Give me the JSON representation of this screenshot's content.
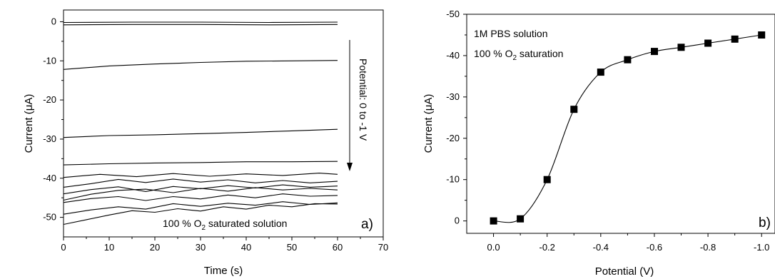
{
  "chart_data": [
    {
      "type": "line",
      "panel_label": "a)",
      "xlabel": "Time (s)",
      "ylabel_pre": "Current (",
      "ylabel_sym": "μ",
      "ylabel_post": "A)",
      "xlim": [
        0,
        70
      ],
      "ylim": [
        -55,
        3
      ],
      "x_ticks": [
        0,
        10,
        20,
        30,
        40,
        50,
        60,
        70
      ],
      "y_ticks": [
        0,
        -10,
        -20,
        -30,
        -40,
        -50
      ],
      "annotation_pre": "100 % O",
      "annotation_sub": "2",
      "annotation_post": " saturated solution",
      "arrow_label": "Potential:  0  to  -1 V",
      "series": [
        {
          "x": [
            0,
            15,
            30,
            45,
            60
          ],
          "values": [
            -0.2,
            -0.1,
            -0.1,
            -0.2,
            -0.1
          ]
        },
        {
          "x": [
            0,
            15,
            30,
            45,
            60
          ],
          "values": [
            -0.8,
            -0.7,
            -0.7,
            -0.8,
            -0.7
          ]
        },
        {
          "x": [
            0,
            10,
            20,
            30,
            40,
            50,
            60
          ],
          "values": [
            -12.2,
            -11.3,
            -10.8,
            -10.4,
            -10.1,
            -10.0,
            -9.9
          ]
        },
        {
          "x": [
            0,
            10,
            20,
            30,
            40,
            50,
            60
          ],
          "values": [
            -29.6,
            -29.1,
            -28.9,
            -28.6,
            -28.3,
            -27.9,
            -27.5
          ]
        },
        {
          "x": [
            0,
            10,
            20,
            30,
            40,
            50,
            60
          ],
          "values": [
            -36.6,
            -36.3,
            -36.1,
            -36.0,
            -35.8,
            -35.8,
            -35.7
          ]
        },
        {
          "x": [
            0,
            8,
            16,
            24,
            32,
            40,
            48,
            56,
            60
          ],
          "values": [
            -39.8,
            -39.0,
            -39.6,
            -38.8,
            -39.5,
            -38.9,
            -39.3,
            -38.7,
            -39.0
          ]
        },
        {
          "x": [
            0,
            6,
            12,
            18,
            24,
            30,
            36,
            42,
            48,
            54,
            60
          ],
          "values": [
            -42.3,
            -41.4,
            -40.3,
            -41.1,
            -40.2,
            -41.0,
            -40.4,
            -41.2,
            -40.6,
            -41.2,
            -40.8
          ]
        },
        {
          "x": [
            0,
            6,
            12,
            18,
            24,
            30,
            36,
            42,
            48,
            54,
            60
          ],
          "values": [
            -44.0,
            -42.9,
            -42.2,
            -43.4,
            -42.1,
            -42.7,
            -41.9,
            -42.5,
            -41.7,
            -42.3,
            -42.0
          ]
        },
        {
          "x": [
            0,
            6,
            12,
            18,
            24,
            30,
            36,
            42,
            48,
            54,
            60
          ],
          "values": [
            -45.6,
            -44.1,
            -43.1,
            -42.8,
            -43.7,
            -42.6,
            -43.3,
            -42.4,
            -43.0,
            -42.6,
            -43.0
          ]
        },
        {
          "x": [
            0,
            6,
            12,
            18,
            24,
            30,
            36,
            42,
            48,
            54,
            60
          ],
          "values": [
            -46.2,
            -45.2,
            -44.7,
            -45.7,
            -44.7,
            -45.3,
            -44.3,
            -45.0,
            -44.0,
            -44.6,
            -44.4
          ]
        },
        {
          "x": [
            0,
            6,
            12,
            18,
            24,
            30,
            36,
            42,
            48,
            54,
            60
          ],
          "values": [
            -49.2,
            -48.1,
            -47.3,
            -47.9,
            -46.5,
            -47.2,
            -46.4,
            -46.9,
            -46.0,
            -46.7,
            -46.3
          ]
        },
        {
          "x": [
            0,
            5,
            10,
            15,
            20,
            25,
            30,
            35,
            40,
            45,
            50,
            55,
            60
          ],
          "values": [
            -51.8,
            -50.6,
            -49.4,
            -48.3,
            -48.7,
            -47.8,
            -48.4,
            -47.3,
            -47.9,
            -46.9,
            -47.3,
            -46.5,
            -46.6
          ]
        }
      ]
    },
    {
      "type": "scatter",
      "panel_label": "b)",
      "xlabel": "Potential (V)",
      "ylabel_pre": "Current (",
      "ylabel_sym": "μ",
      "ylabel_post": "A)",
      "xlim": [
        0.1,
        -1.05
      ],
      "ylim": [
        3,
        -50
      ],
      "x_ticks": [
        0.0,
        -0.2,
        -0.4,
        -0.6,
        -0.8,
        -1.0
      ],
      "x_tick_labels": [
        "0.0",
        "-0.2",
        "-0.4",
        "-0.6",
        "-0.8",
        "-1.0"
      ],
      "y_ticks": [
        0,
        -10,
        -20,
        -30,
        -40,
        -50
      ],
      "annotation_1": "1M PBS solution",
      "annotation_2_pre": "100 % O",
      "annotation_2_sub": "2",
      "annotation_2_post": " saturation",
      "x": [
        0.0,
        -0.1,
        -0.2,
        -0.3,
        -0.4,
        -0.5,
        -0.6,
        -0.7,
        -0.8,
        -0.9,
        -1.0
      ],
      "values": [
        0.0,
        -0.5,
        -10.0,
        -27.0,
        -36.0,
        -39.0,
        -41.0,
        -42.0,
        -43.0,
        -44.0,
        -45.0
      ]
    }
  ]
}
